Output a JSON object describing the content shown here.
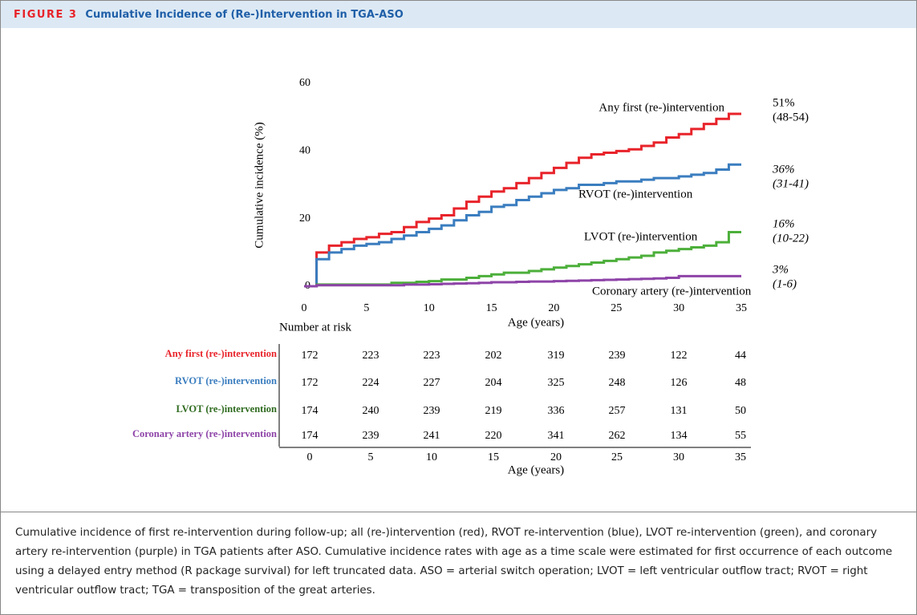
{
  "figure": {
    "label": "FIGURE 3",
    "title": "Cumulative Incidence of (Re-)Intervention in TGA-ASO"
  },
  "chart_data": {
    "type": "line",
    "drawstyle": "steps-post",
    "ylabel": "Cumulative incidence (%)",
    "xlabel": "Age (years)",
    "x": [
      0,
      1,
      2,
      3,
      4,
      5,
      6,
      7,
      8,
      9,
      10,
      11,
      12,
      13,
      14,
      15,
      16,
      17,
      18,
      19,
      20,
      21,
      22,
      23,
      24,
      25,
      26,
      27,
      28,
      29,
      30,
      31,
      32,
      33,
      34,
      35
    ],
    "xlim": [
      0,
      35
    ],
    "xticks": [
      0,
      5,
      10,
      15,
      20,
      25,
      30,
      35
    ],
    "ylim": [
      0,
      60
    ],
    "yticks": [
      0,
      20,
      40,
      60
    ],
    "grid": false,
    "series": [
      {
        "name": "Any first (re-)intervention",
        "color": "#e8232a",
        "estimate": "51%",
        "interval": "(48-54)",
        "values": [
          0,
          10,
          12,
          13,
          14,
          14.5,
          15.5,
          16,
          17.5,
          19,
          20,
          21,
          23,
          25,
          26.5,
          28,
          29,
          30.5,
          32,
          33.5,
          35,
          36.5,
          38,
          39,
          39.5,
          40,
          40.5,
          41.5,
          42.5,
          44,
          45,
          46.5,
          48,
          49.5,
          51,
          51
        ]
      },
      {
        "name": "RVOT (re-)intervention",
        "color": "#3a7dbf",
        "estimate": "36%",
        "interval": "(31-41)",
        "values": [
          0,
          8,
          10,
          11,
          12,
          12.5,
          13,
          14,
          15,
          16,
          17,
          18,
          19.5,
          21,
          22,
          23.5,
          24,
          25.5,
          26.5,
          27.5,
          28.5,
          29,
          30,
          30,
          30.5,
          31,
          31,
          31.5,
          32,
          32,
          32.5,
          33,
          33.5,
          34.5,
          36,
          36
        ]
      },
      {
        "name": "LVOT (re-)intervention",
        "color": "#4caf3a",
        "estimate": "16%",
        "interval": "(10-22)",
        "values": [
          0,
          0.5,
          0.5,
          0.5,
          0.5,
          0.5,
          0.5,
          1,
          1,
          1.3,
          1.5,
          2,
          2,
          2.5,
          3,
          3.5,
          4,
          4,
          4.5,
          5,
          5.5,
          6,
          6.5,
          7,
          7.5,
          8,
          8.5,
          9,
          10,
          10.5,
          11,
          11.5,
          12,
          13,
          16,
          16
        ]
      },
      {
        "name": "Coronary artery (re-)intervention",
        "color": "#8e44a8",
        "estimate": "3%",
        "interval": "(1-6)",
        "values": [
          0,
          0.3,
          0.3,
          0.3,
          0.3,
          0.3,
          0.3,
          0.3,
          0.5,
          0.5,
          0.6,
          0.7,
          0.8,
          0.9,
          1,
          1.2,
          1.2,
          1.3,
          1.4,
          1.4,
          1.5,
          1.6,
          1.7,
          1.8,
          1.9,
          2,
          2.1,
          2.2,
          2.3,
          2.5,
          3,
          3,
          3,
          3,
          3,
          3
        ]
      }
    ]
  },
  "risk_table": {
    "title": "Number at risk",
    "xlabel": "Age (years)",
    "columns": [
      "0",
      "5",
      "10",
      "15",
      "20",
      "25",
      "30",
      "35"
    ],
    "rows": [
      {
        "name": "Any first (re-)intervention",
        "color": "#e8232a",
        "values": [
          "172",
          "223",
          "223",
          "202",
          "319",
          "239",
          "122",
          "44"
        ]
      },
      {
        "name": "RVOT (re-)intervention",
        "color": "#3a7dbf",
        "values": [
          "172",
          "224",
          "227",
          "204",
          "325",
          "248",
          "126",
          "48"
        ]
      },
      {
        "name": "LVOT (re-)intervention",
        "color": "#2f6b1f",
        "values": [
          "174",
          "240",
          "239",
          "219",
          "336",
          "257",
          "131",
          "50"
        ]
      },
      {
        "name": "Coronary artery (re-)intervention",
        "color": "#8e44a8",
        "values": [
          "174",
          "239",
          "241",
          "220",
          "341",
          "262",
          "134",
          "55"
        ]
      }
    ]
  },
  "caption": "Cumulative incidence of first re-intervention during follow-up; all (re-)intervention (red), RVOT re-intervention (blue), LVOT re-intervention (green), and coronary artery re-intervention (purple) in TGA patients after ASO. Cumulative incidence rates with age as a time scale were estimated for first occurrence of each outcome using a delayed entry method (R package survival) for left truncated data. ASO = arterial switch operation; LVOT = left ventricular outflow tract; RVOT = right ventricular outflow tract; TGA = transposition of the great arteries."
}
